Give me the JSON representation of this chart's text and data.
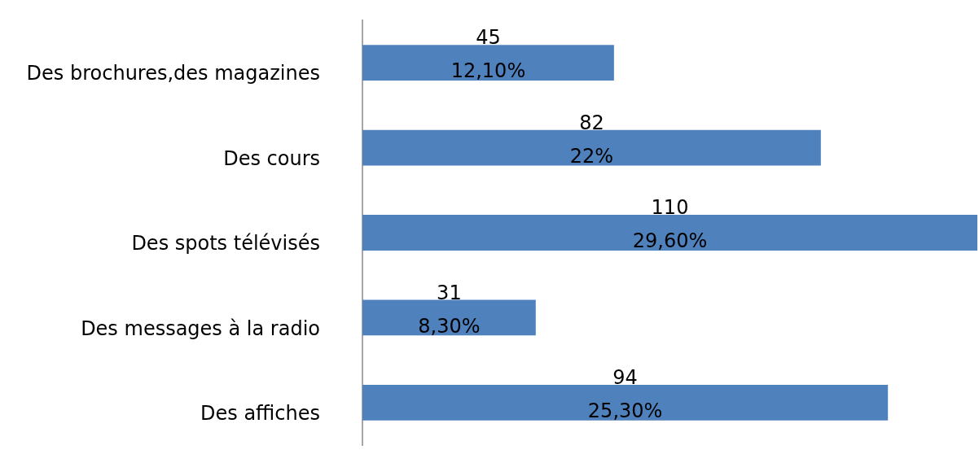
{
  "chart_data": {
    "type": "bar",
    "orientation": "horizontal",
    "categories": [
      "Des brochures,des magazines",
      "Des cours",
      "Des spots télévisés",
      "Des messages à la radio",
      "Des affiches"
    ],
    "values": [
      45,
      82,
      110,
      31,
      94
    ],
    "color": "#4f81bd",
    "xlim": [
      0,
      110
    ],
    "data_labels": true,
    "tick_labels": "y",
    "annotations": [
      "12,10%",
      "22%",
      "29,60%",
      "8,30%",
      "25,30%"
    ]
  }
}
